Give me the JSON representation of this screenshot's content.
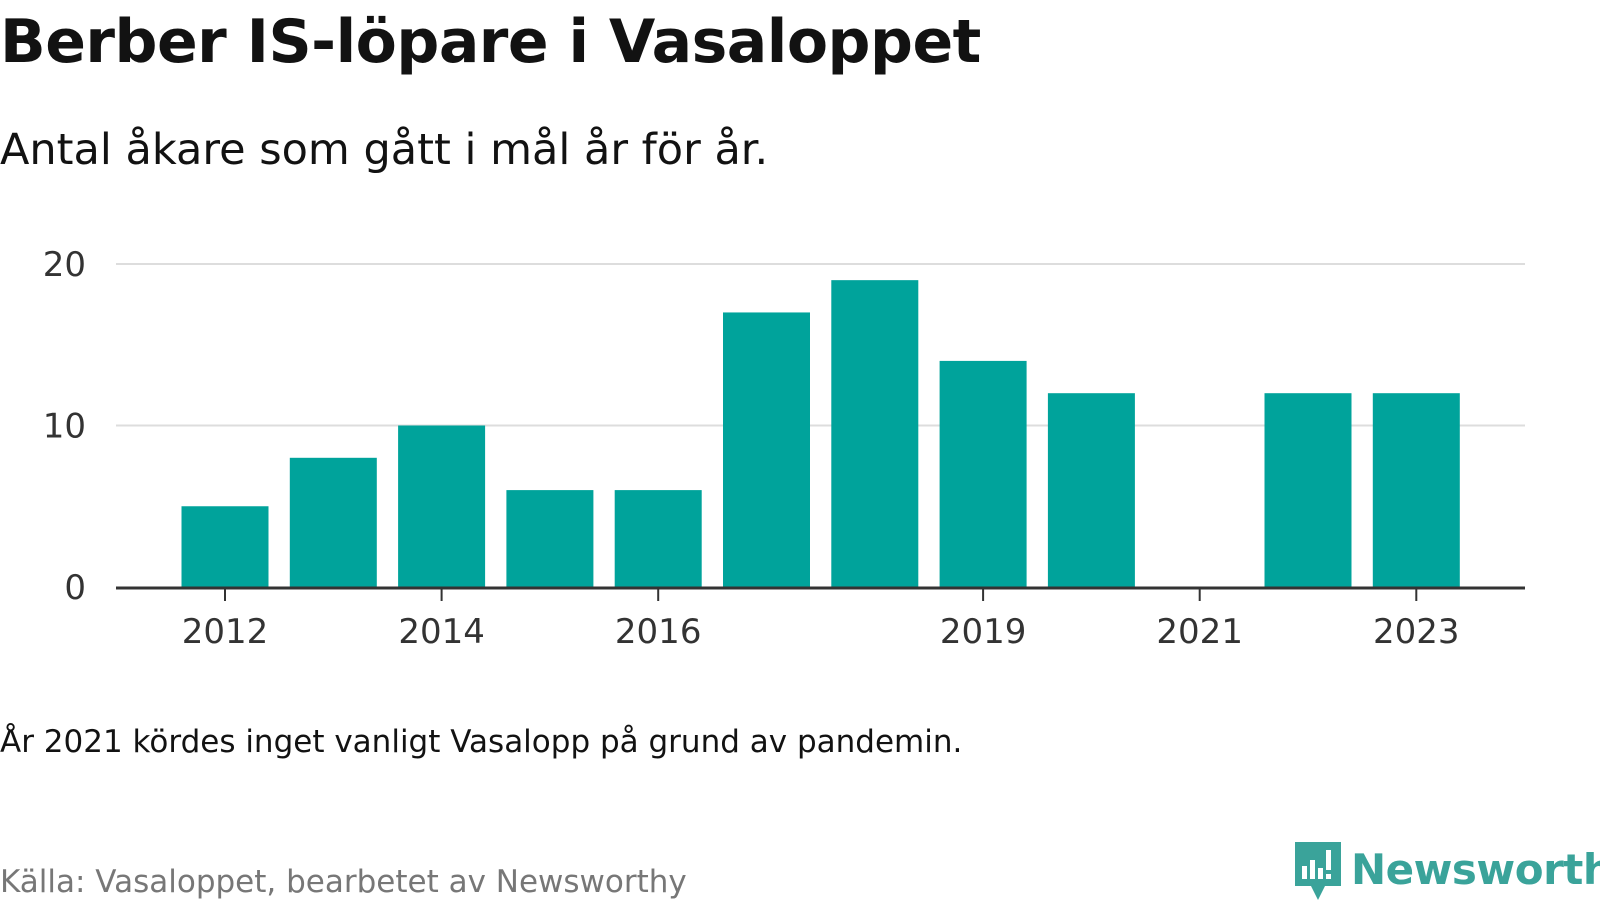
{
  "header": {
    "title": "Berber IS-löpare i Vasaloppet",
    "subtitle": "Antal åkare som gått i mål år för år."
  },
  "footer": {
    "note": "År 2021 kördes inget vanligt Vasalopp på grund av pandemin.",
    "source": "Källa: Vasaloppet, bearbetet av Newsworthy",
    "brand": "Newsworthy"
  },
  "colors": {
    "bar": "#00a39b",
    "brand": "#3aa39a",
    "grid": "#dddddd",
    "axis": "#333333"
  },
  "chart_data": {
    "type": "bar",
    "title": "Berber IS-löpare i Vasaloppet",
    "subtitle": "Antal åkare som gått i mål år för år.",
    "xlabel": "",
    "ylabel": "",
    "categories": [
      "2012",
      "2013",
      "2014",
      "2015",
      "2016",
      "2017",
      "2018",
      "2019",
      "2020",
      "2021",
      "2022",
      "2023"
    ],
    "values": [
      5,
      8,
      10,
      6,
      6,
      17,
      19,
      14,
      12,
      null,
      12,
      12
    ],
    "x_tick_labels": [
      "2012",
      "2014",
      "2016",
      "2019",
      "2021",
      "2023"
    ],
    "y_ticks": [
      0,
      10,
      20
    ],
    "ylim": [
      0,
      20
    ],
    "grid": true,
    "legend": "none"
  }
}
